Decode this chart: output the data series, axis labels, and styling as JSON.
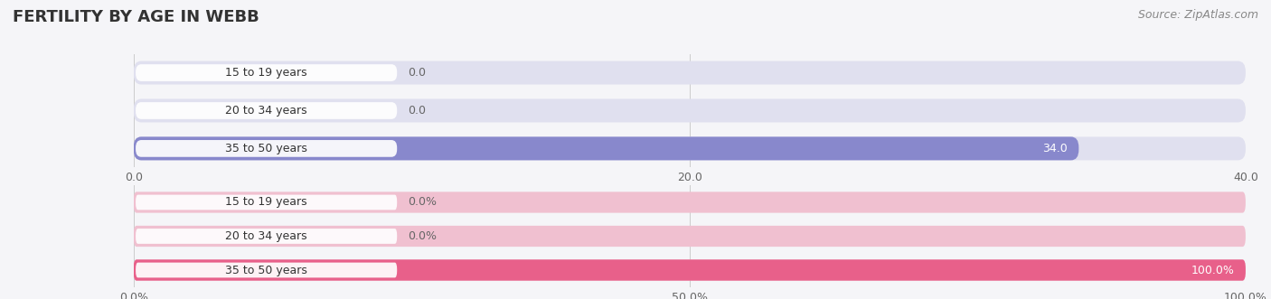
{
  "title": "FERTILITY BY AGE IN WEBB",
  "source": "Source: ZipAtlas.com",
  "top_chart": {
    "categories": [
      "15 to 19 years",
      "20 to 34 years",
      "35 to 50 years"
    ],
    "values": [
      0.0,
      0.0,
      34.0
    ],
    "xlim": [
      0,
      40
    ],
    "xticks": [
      0.0,
      20.0,
      40.0
    ],
    "bar_color": "#8888cc",
    "bar_bg_color": "#e0e0ef",
    "label_color_inside": "#ffffff",
    "label_color_outside": "#666666"
  },
  "bottom_chart": {
    "categories": [
      "15 to 19 years",
      "20 to 34 years",
      "35 to 50 years"
    ],
    "values": [
      0.0,
      0.0,
      100.0
    ],
    "xlim": [
      0,
      100
    ],
    "xticks": [
      0.0,
      50.0,
      100.0
    ],
    "xticklabels": [
      "0.0%",
      "50.0%",
      "100.0%"
    ],
    "bar_color": "#e8608a",
    "bar_bg_color": "#f0c0d0",
    "label_color_inside": "#ffffff",
    "label_color_outside": "#666666"
  },
  "background_color": "#f5f5f8",
  "bar_height": 0.62,
  "label_fontsize": 9,
  "tick_fontsize": 9,
  "title_fontsize": 13,
  "source_fontsize": 9,
  "category_fontsize": 9
}
